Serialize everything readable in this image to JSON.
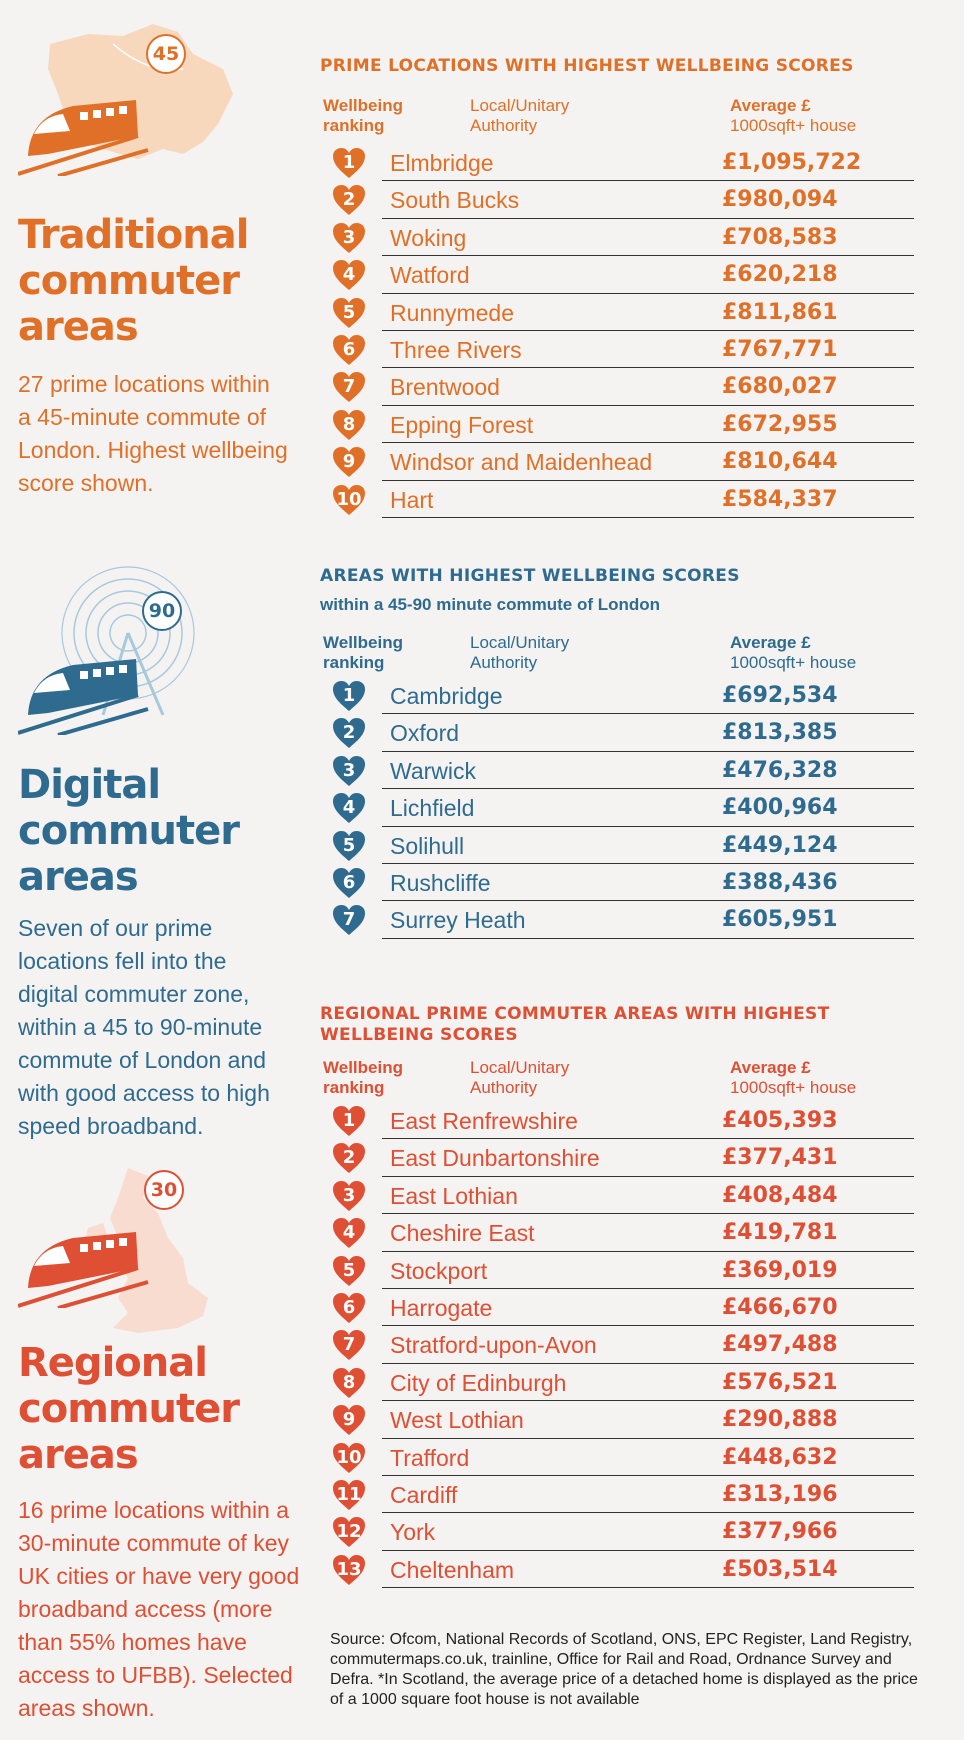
{
  "colors": {
    "traditional": "#e07028",
    "digital": "#2e6b8f",
    "regional": "#df4f33",
    "traditional_light": "#f8d8bd",
    "regional_light": "#f8dccf",
    "digital_light": "#a8c8dc"
  },
  "traditional": {
    "badge": "45",
    "title_lines": [
      "Traditional",
      "commuter",
      "areas"
    ],
    "description": "27 prime locations within a 45-minute commute of London. Highest wellbeing score shown.",
    "table_title": "PRIME LOCATIONS WITH HIGHEST WELLBEING SCORES",
    "headers": {
      "rank_line1": "Wellbeing",
      "rank_line2": "ranking",
      "authority_line1": "Local/Unitary",
      "authority_line2": "Authority",
      "price_line1": "Average £",
      "price_line2": "1000sqft+ house"
    },
    "rows": [
      {
        "rank": "1",
        "name": "Elmbridge",
        "price": "£1,095,722"
      },
      {
        "rank": "2",
        "name": "South Bucks",
        "price": "£980,094"
      },
      {
        "rank": "3",
        "name": "Woking",
        "price": "£708,583"
      },
      {
        "rank": "4",
        "name": "Watford",
        "price": "£620,218"
      },
      {
        "rank": "5",
        "name": "Runnymede",
        "price": "£811,861"
      },
      {
        "rank": "6",
        "name": "Three Rivers",
        "price": "£767,771"
      },
      {
        "rank": "7",
        "name": "Brentwood",
        "price": "£680,027"
      },
      {
        "rank": "8",
        "name": "Epping Forest",
        "price": "£672,955"
      },
      {
        "rank": "9",
        "name": "Windsor and Maidenhead",
        "price": "£810,644"
      },
      {
        "rank": "10",
        "name": "Hart",
        "price": "£584,337"
      }
    ]
  },
  "digital": {
    "badge": "90",
    "title_lines": [
      "Digital",
      "commuter",
      "areas"
    ],
    "description": "Seven of our prime locations fell into the digital commuter zone, within a 45 to 90-minute commute of London and with good access to high speed broadband.",
    "table_title": "AREAS WITH HIGHEST WELLBEING SCORES",
    "table_subtitle": "within a 45-90 minute commute of London",
    "headers": {
      "rank_line1": "Wellbeing",
      "rank_line2": "ranking",
      "authority_line1": "Local/Unitary",
      "authority_line2": "Authority",
      "price_line1": "Average £",
      "price_line2": "1000sqft+ house"
    },
    "rows": [
      {
        "rank": "1",
        "name": "Cambridge",
        "price": "£692,534"
      },
      {
        "rank": "2",
        "name": "Oxford",
        "price": "£813,385"
      },
      {
        "rank": "3",
        "name": "Warwick",
        "price": "£476,328"
      },
      {
        "rank": "4",
        "name": "Lichfield",
        "price": "£400,964"
      },
      {
        "rank": "5",
        "name": "Solihull",
        "price": "£449,124"
      },
      {
        "rank": "6",
        "name": "Rushcliffe",
        "price": "£388,436"
      },
      {
        "rank": "7",
        "name": "Surrey Heath",
        "price": "£605,951"
      }
    ]
  },
  "regional": {
    "badge": "30",
    "title_lines": [
      "Regional",
      "commuter",
      "areas"
    ],
    "description": "16 prime locations within a 30-minute commute of key UK cities or have very good broadband access (more than 55% homes have access to UFBB). Selected areas shown.",
    "table_title_line1": "REGIONAL PRIME COMMUTER AREAS WITH HIGHEST",
    "table_title_line2": "WELLBEING SCORES",
    "headers": {
      "rank_line1": "Wellbeing",
      "rank_line2": "ranking",
      "authority_line1": "Local/Unitary",
      "authority_line2": "Authority",
      "price_line1": "Average £",
      "price_line2": "1000sqft+ house"
    },
    "rows": [
      {
        "rank": "1",
        "name": "East Renfrewshire",
        "price": "£405,393"
      },
      {
        "rank": "2",
        "name": "East Dunbartonshire",
        "price": "£377,431"
      },
      {
        "rank": "3",
        "name": "East Lothian",
        "price": "£408,484"
      },
      {
        "rank": "4",
        "name": "Cheshire East",
        "price": "£419,781"
      },
      {
        "rank": "5",
        "name": "Stockport",
        "price": "£369,019"
      },
      {
        "rank": "6",
        "name": "Harrogate",
        "price": "£466,670"
      },
      {
        "rank": "7",
        "name": "Stratford-upon-Avon",
        "price": "£497,488"
      },
      {
        "rank": "8",
        "name": "City of Edinburgh",
        "price": "£576,521"
      },
      {
        "rank": "9",
        "name": "West Lothian",
        "price": "£290,888"
      },
      {
        "rank": "10",
        "name": "Trafford",
        "price": "£448,632"
      },
      {
        "rank": "11",
        "name": "Cardiff",
        "price": "£313,196"
      },
      {
        "rank": "12",
        "name": "York",
        "price": "£377,966"
      },
      {
        "rank": "13",
        "name": "Cheltenham",
        "price": "£503,514"
      }
    ]
  },
  "source": "Source: Ofcom, National Records of Scotland, ONS, EPC Register, Land Registry, commutermaps.co.uk, trainline, Office for Rail and Road, Ordnance Survey and Defra. *In Scotland, the average price of a detached home is displayed as the price of a 1000 square foot house is not available"
}
